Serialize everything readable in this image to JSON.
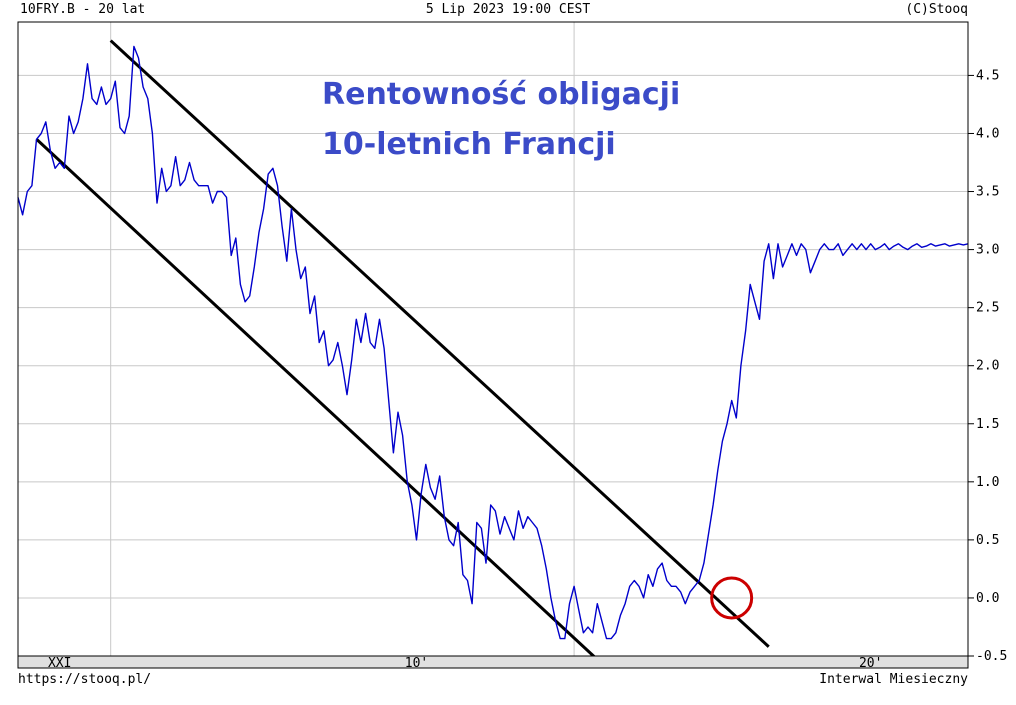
{
  "header": {
    "symbol": "10FRY.B - 20 lat",
    "datetime": "5 Lip 2023 19:00 CEST",
    "copyright": "(C)Stooq"
  },
  "footer": {
    "url": "https://stooq.pl/",
    "interval": "Interwal Miesieczny"
  },
  "colors": {
    "series": "#0000cc",
    "annotation_text": "#3b4bc8",
    "trendlines": "#000000",
    "highlight_circle": "#cc0000",
    "grid": "#c8c8c8",
    "xaxis_band": "#e0e0e0"
  },
  "chart_data": {
    "type": "line",
    "title": "Rentowność obligacji",
    "subtitle": "10-letnich Francji",
    "xlabel": "",
    "ylabel": "",
    "ylim": [
      -0.5,
      4.9
    ],
    "y_ticks": [
      4.5,
      4.0,
      3.5,
      3.0,
      2.5,
      2.0,
      1.5,
      1.0,
      0.5,
      0.0,
      -0.5
    ],
    "y_tick_labels": [
      "4.5",
      "4.0",
      "3.5",
      "3.0",
      "2.5",
      "2.0",
      "1.5",
      "1.0",
      "0.5",
      "0.0",
      "-0.5"
    ],
    "x_tick_labels": [
      "XXI",
      "10'",
      "20'"
    ],
    "x_gridlines": [
      2005.0,
      2015.0
    ],
    "xlim": [
      2003.0,
      2023.5
    ],
    "grid": true,
    "legend": "none",
    "y_axis_side": "right",
    "series": [
      {
        "x": [
          2003.0,
          2003.1,
          2003.2,
          2003.3,
          2003.4,
          2003.5,
          2003.6,
          2003.7,
          2003.8,
          2003.9,
          2004.0,
          2004.1,
          2004.2,
          2004.3,
          2004.4,
          2004.5,
          2004.6,
          2004.7,
          2004.8,
          2004.9,
          2005.0,
          2005.1,
          2005.2,
          2005.3,
          2005.4,
          2005.5,
          2005.6,
          2005.7,
          2005.8,
          2005.9,
          2006.0,
          2006.1,
          2006.2,
          2006.3,
          2006.4,
          2006.5,
          2006.6,
          2006.7,
          2006.8,
          2006.9,
          2007.0,
          2007.1,
          2007.2,
          2007.3,
          2007.4,
          2007.5,
          2007.6,
          2007.7,
          2007.8,
          2007.9,
          2008.0,
          2008.1,
          2008.2,
          2008.3,
          2008.4,
          2008.5,
          2008.6,
          2008.7,
          2008.8,
          2008.9,
          2009.0,
          2009.1,
          2009.2,
          2009.3,
          2009.4,
          2009.5,
          2009.6,
          2009.7,
          2009.8,
          2009.9,
          2010.0,
          2010.1,
          2010.2,
          2010.3,
          2010.4,
          2010.5,
          2010.6,
          2010.7,
          2010.8,
          2010.9,
          2011.0,
          2011.1,
          2011.2,
          2011.3,
          2011.4,
          2011.5,
          2011.6,
          2011.7,
          2011.8,
          2011.9,
          2012.0,
          2012.1,
          2012.2,
          2012.3,
          2012.4,
          2012.5,
          2012.6,
          2012.7,
          2012.8,
          2012.9,
          2013.0,
          2013.1,
          2013.2,
          2013.3,
          2013.4,
          2013.5,
          2013.6,
          2013.7,
          2013.8,
          2013.9,
          2014.0,
          2014.1,
          2014.2,
          2014.3,
          2014.4,
          2014.5,
          2014.6,
          2014.7,
          2014.8,
          2014.9,
          2015.0,
          2015.1,
          2015.2,
          2015.3,
          2015.4,
          2015.5,
          2015.6,
          2015.7,
          2015.8,
          2015.9,
          2016.0,
          2016.1,
          2016.2,
          2016.3,
          2016.4,
          2016.5,
          2016.6,
          2016.7,
          2016.8,
          2016.9,
          2017.0,
          2017.1,
          2017.2,
          2017.3,
          2017.4,
          2017.5,
          2017.6,
          2017.7,
          2017.8,
          2017.9,
          2018.0,
          2018.1,
          2018.2,
          2018.3,
          2018.4,
          2018.5,
          2018.6,
          2018.7,
          2018.8,
          2018.9,
          2019.0,
          2019.1,
          2019.2,
          2019.3,
          2019.4,
          2019.5,
          2019.6,
          2019.7,
          2019.8,
          2019.9,
          2020.0,
          2020.1,
          2020.2,
          2020.3,
          2020.4,
          2020.5,
          2020.6,
          2020.7,
          2020.8,
          2020.9,
          2021.0,
          2021.1,
          2021.2,
          2021.3,
          2021.4,
          2021.5,
          2021.6,
          2021.7,
          2021.8,
          2021.9,
          2022.0,
          2022.1,
          2022.2,
          2022.3,
          2022.4,
          2022.5,
          2022.6,
          2022.7,
          2022.8,
          2022.9,
          2023.0,
          2023.1,
          2023.2,
          2023.3,
          2023.4,
          2023.5
        ],
        "values": [
          3.45,
          3.3,
          3.5,
          3.55,
          3.95,
          4.0,
          4.1,
          3.85,
          3.7,
          3.75,
          3.7,
          4.15,
          4.0,
          4.1,
          4.3,
          4.6,
          4.3,
          4.25,
          4.4,
          4.25,
          4.3,
          4.45,
          4.05,
          4.0,
          4.15,
          4.75,
          4.65,
          4.4,
          4.3,
          4.0,
          3.4,
          3.7,
          3.5,
          3.55,
          3.8,
          3.55,
          3.6,
          3.75,
          3.6,
          3.55,
          3.55,
          3.55,
          3.4,
          3.5,
          3.5,
          3.45,
          2.95,
          3.1,
          2.7,
          2.55,
          2.6,
          2.85,
          3.15,
          3.35,
          3.65,
          3.7,
          3.55,
          3.2,
          2.9,
          3.35,
          3.0,
          2.75,
          2.85,
          2.45,
          2.6,
          2.2,
          2.3,
          2.0,
          2.05,
          2.2,
          2.0,
          1.75,
          2.05,
          2.4,
          2.2,
          2.45,
          2.2,
          2.15,
          2.4,
          2.15,
          1.7,
          1.25,
          1.6,
          1.4,
          1.0,
          0.8,
          0.5,
          0.9,
          1.15,
          0.95,
          0.85,
          1.05,
          0.7,
          0.5,
          0.45,
          0.65,
          0.2,
          0.15,
          -0.05,
          0.65,
          0.6,
          0.3,
          0.8,
          0.75,
          0.55,
          0.7,
          0.6,
          0.5,
          0.75,
          0.6,
          0.7,
          0.65,
          0.6,
          0.45,
          0.25,
          0.0,
          -0.2,
          -0.35,
          -0.35,
          -0.05,
          0.1,
          -0.1,
          -0.3,
          -0.25,
          -0.3,
          -0.05,
          -0.2,
          -0.35,
          -0.35,
          -0.3,
          -0.15,
          -0.05,
          0.1,
          0.15,
          0.1,
          0.0,
          0.2,
          0.1,
          0.25,
          0.3,
          0.15,
          0.1,
          0.1,
          0.05,
          -0.05,
          0.05,
          0.1,
          0.15,
          0.3,
          0.55,
          0.8,
          1.1,
          1.35,
          1.5,
          1.7,
          1.55,
          2.0,
          2.3,
          2.7,
          2.55,
          2.4,
          2.9,
          3.05,
          2.75,
          3.05,
          2.85,
          2.95,
          3.05,
          2.95,
          3.05,
          3.0,
          2.8,
          2.9,
          3.0,
          3.05,
          3.0,
          3.0,
          3.05,
          2.95,
          3.0,
          3.05,
          3.0,
          3.05,
          3.0,
          3.05,
          3.0,
          3.02,
          3.05,
          3.0,
          3.03,
          3.05,
          3.02,
          3.0,
          3.03,
          3.05,
          3.02,
          3.03,
          3.05,
          3.03,
          3.04,
          3.05,
          3.03,
          3.04,
          3.05,
          3.04,
          3.05
        ]
      }
    ],
    "trendlines": [
      {
        "x": [
          2005.0,
          2019.2
        ],
        "y": [
          4.8,
          -0.42
        ]
      },
      {
        "x": [
          2003.4,
          2015.5
        ],
        "y": [
          3.95,
          -0.53
        ]
      }
    ],
    "highlight": {
      "x": 2018.4,
      "y": 0.0
    }
  }
}
